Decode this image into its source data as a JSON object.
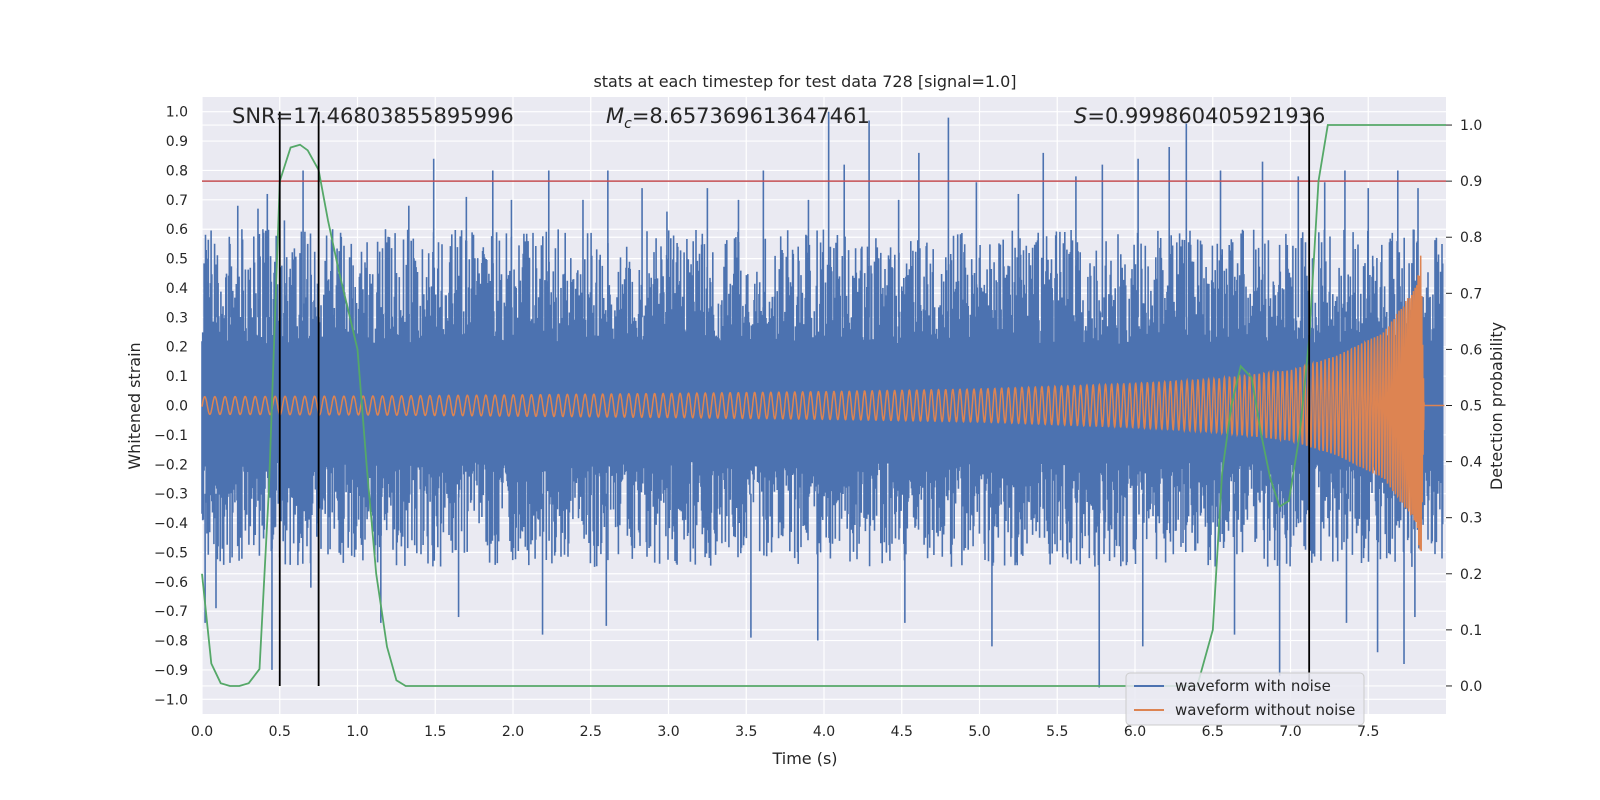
{
  "chart_data": {
    "type": "line",
    "title": "stats at each timestep for test data 728 [signal=1.0]",
    "xlabel": "Time (s)",
    "ylabel_left": "Whitened strain",
    "ylabel_right": "Detection probability",
    "xlim": [
      0.0,
      8.0
    ],
    "ylim_left": [
      -1.05,
      1.05
    ],
    "ylim_right": [
      -0.05,
      1.05
    ],
    "x_ticks": [
      "0.0",
      "0.5",
      "1.0",
      "1.5",
      "2.0",
      "2.5",
      "3.0",
      "3.5",
      "4.0",
      "4.5",
      "5.0",
      "5.5",
      "6.0",
      "6.5",
      "7.0",
      "7.5"
    ],
    "y_ticks_left": [
      "1.0",
      "0.9",
      "0.8",
      "0.7",
      "0.6",
      "0.5",
      "0.4",
      "0.3",
      "0.2",
      "0.1",
      "0.0",
      "−0.1",
      "−0.2",
      "−0.3",
      "−0.4",
      "−0.5",
      "−0.6",
      "−0.7",
      "−0.8",
      "−0.9",
      "−1.0"
    ],
    "y_ticks_right": [
      "1.0",
      "0.9",
      "0.8",
      "0.7",
      "0.6",
      "0.5",
      "0.4",
      "0.3",
      "0.2",
      "0.1",
      "0.0"
    ],
    "grid": true,
    "background": "#EAEAF2",
    "annotations": {
      "snr": "SNR=17.46803855895996",
      "mc_symbol": "M",
      "mc_sub": "c",
      "mc_value": "=8.657369613647461",
      "s_symbol": "S",
      "s_value": "=0.999860405921936"
    },
    "threshold": {
      "value": 0.9,
      "axis": "right",
      "color": "#C44E52"
    },
    "vertical_markers": [
      0.5,
      0.75,
      7.12
    ],
    "noise_spikes": [
      [
        0.03,
        0.5
      ],
      [
        0.09,
        0.48
      ],
      [
        0.18,
        0.55
      ],
      [
        0.23,
        0.68
      ],
      [
        0.36,
        0.67
      ],
      [
        0.42,
        0.72
      ],
      [
        0.53,
        0.63
      ],
      [
        0.65,
        0.8
      ],
      [
        0.68,
        0.55
      ],
      [
        0.84,
        0.6
      ],
      [
        0.96,
        0.55
      ],
      [
        1.18,
        0.6
      ],
      [
        1.33,
        0.68
      ],
      [
        1.49,
        0.84
      ],
      [
        1.7,
        0.71
      ],
      [
        1.87,
        0.8
      ],
      [
        1.99,
        0.7
      ],
      [
        2.23,
        0.8
      ],
      [
        2.45,
        0.7
      ],
      [
        2.61,
        0.8
      ],
      [
        2.83,
        0.74
      ],
      [
        2.99,
        0.66
      ],
      [
        3.25,
        0.74
      ],
      [
        3.45,
        0.7
      ],
      [
        3.61,
        0.8
      ],
      [
        3.9,
        0.7
      ],
      [
        4.03,
        1.0
      ],
      [
        4.13,
        0.82
      ],
      [
        4.29,
        0.97
      ],
      [
        4.48,
        0.7
      ],
      [
        4.61,
        0.86
      ],
      [
        4.8,
        0.98
      ],
      [
        4.98,
        0.76
      ],
      [
        5.25,
        0.72
      ],
      [
        5.41,
        0.86
      ],
      [
        5.62,
        0.78
      ],
      [
        5.79,
        0.82
      ],
      [
        6.02,
        0.84
      ],
      [
        6.22,
        0.88
      ],
      [
        6.33,
        0.96
      ],
      [
        6.55,
        0.8
      ],
      [
        6.82,
        0.83
      ],
      [
        7.05,
        0.78
      ],
      [
        7.22,
        0.76
      ],
      [
        7.35,
        0.8
      ],
      [
        7.5,
        0.74
      ],
      [
        7.69,
        0.8
      ],
      [
        7.82,
        0.74
      ]
    ],
    "noise_dips": [
      [
        0.02,
        -0.74
      ],
      [
        0.09,
        -0.69
      ],
      [
        0.45,
        -0.9
      ],
      [
        0.7,
        -0.62
      ],
      [
        0.75,
        -0.73
      ],
      [
        1.15,
        -0.74
      ],
      [
        1.65,
        -0.72
      ],
      [
        2.19,
        -0.78
      ],
      [
        2.6,
        -0.75
      ],
      [
        3.53,
        -0.79
      ],
      [
        3.96,
        -0.8
      ],
      [
        4.52,
        -0.74
      ],
      [
        5.08,
        -0.82
      ],
      [
        5.77,
        -0.96
      ],
      [
        6.05,
        -0.82
      ],
      [
        6.64,
        -0.78
      ],
      [
        6.93,
        -0.92
      ],
      [
        7.36,
        -0.74
      ],
      [
        7.56,
        -0.84
      ],
      [
        7.73,
        -0.88
      ],
      [
        7.8,
        -0.72
      ]
    ],
    "series": [
      {
        "name": "waveform with noise",
        "color": "#4C72B0",
        "envelope": {
          "x": [
            0.0,
            8.0
          ],
          "band": [
            -0.55,
            0.6
          ]
        }
      },
      {
        "name": "waveform without noise",
        "color": "#DD8452",
        "envelope": {
          "x": [
            0.0,
            1.0,
            2.0,
            3.0,
            4.0,
            5.0,
            6.0,
            6.5,
            7.0,
            7.3,
            7.6,
            7.8,
            7.84,
            7.86
          ],
          "amplitude": [
            0.03,
            0.032,
            0.036,
            0.041,
            0.047,
            0.056,
            0.075,
            0.09,
            0.12,
            0.17,
            0.25,
            0.4,
            0.52,
            0.0
          ]
        }
      },
      {
        "name": "detection probability",
        "color": "#55A868",
        "axis": "right",
        "x": [
          0.0,
          0.06,
          0.12,
          0.18,
          0.24,
          0.3,
          0.37,
          0.43,
          0.5,
          0.57,
          0.63,
          0.68,
          0.75,
          0.81,
          0.88,
          0.94,
          1.0,
          1.06,
          1.12,
          1.19,
          1.25,
          1.31,
          1.4,
          2.0,
          3.0,
          4.0,
          5.0,
          5.5,
          6.0,
          6.4,
          6.5,
          6.56,
          6.62,
          6.68,
          6.75,
          6.81,
          6.87,
          6.93,
          6.99,
          7.06,
          7.12,
          7.18,
          7.24,
          7.3,
          7.5,
          8.0
        ],
        "values": [
          0.2,
          0.04,
          0.005,
          0.0,
          0.0,
          0.005,
          0.03,
          0.35,
          0.9,
          0.96,
          0.965,
          0.955,
          0.92,
          0.83,
          0.74,
          0.67,
          0.6,
          0.39,
          0.2,
          0.07,
          0.01,
          0.0,
          0.0,
          0.0,
          0.0,
          0.0,
          0.0,
          0.0,
          0.0,
          0.0,
          0.1,
          0.38,
          0.5,
          0.57,
          0.55,
          0.45,
          0.37,
          0.32,
          0.33,
          0.45,
          0.62,
          0.9,
          1.0,
          1.0,
          1.0,
          1.0
        ]
      }
    ],
    "legend": {
      "placement": "lower-right",
      "items": [
        {
          "label": "waveform with noise",
          "color": "#4C72B0"
        },
        {
          "label": "waveform without noise",
          "color": "#DD8452"
        }
      ]
    }
  }
}
